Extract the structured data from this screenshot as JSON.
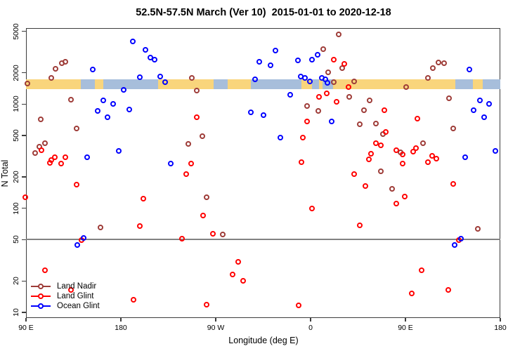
{
  "title": "52.5N-57.5N March (Ver 10)  2015-01-01 to 2020-12-18",
  "x_axis": {
    "label": "Longitude (deg E)",
    "range": [
      90,
      540
    ],
    "ticks": [
      {
        "pos": 90,
        "label": "90 E"
      },
      {
        "pos": 180,
        "label": "180"
      },
      {
        "pos": 270,
        "label": "90 W"
      },
      {
        "pos": 360,
        "label": "0"
      },
      {
        "pos": 450,
        "label": "90 E"
      },
      {
        "pos": 540,
        "label": "180"
      }
    ]
  },
  "y_axis": {
    "label": "N Total",
    "scale": "log",
    "range": [
      10,
      5000
    ],
    "ticks": [
      5000,
      2000,
      1000,
      500,
      200,
      100,
      50,
      20,
      10
    ]
  },
  "reference_line": {
    "value": 50,
    "color": "#828282"
  },
  "map_band": {
    "meaning": "land/ocean strip along 52.5N-57.5N",
    "value_range": [
      1390,
      1730
    ],
    "land_color": "#f9d57c",
    "ocean_color": "#a7bedb",
    "segments": [
      {
        "type": "land",
        "from": 90,
        "to": 142
      },
      {
        "type": "ocean",
        "from": 142,
        "to": 155
      },
      {
        "type": "land",
        "from": 155,
        "to": 163
      },
      {
        "type": "ocean",
        "from": 163,
        "to": 215
      },
      {
        "type": "land",
        "from": 215,
        "to": 268
      },
      {
        "type": "ocean",
        "from": 268,
        "to": 281
      },
      {
        "type": "land",
        "from": 281,
        "to": 303
      },
      {
        "type": "ocean",
        "from": 303,
        "to": 351
      },
      {
        "type": "land",
        "from": 351,
        "to": 361
      },
      {
        "type": "ocean",
        "from": 361,
        "to": 368
      },
      {
        "type": "land",
        "from": 368,
        "to": 371
      },
      {
        "type": "ocean",
        "from": 371,
        "to": 381
      },
      {
        "type": "land",
        "from": 381,
        "to": 497
      },
      {
        "type": "ocean",
        "from": 497,
        "to": 514
      },
      {
        "type": "land",
        "from": 514,
        "to": 523
      },
      {
        "type": "ocean",
        "from": 523,
        "to": 540
      }
    ]
  },
  "legend": {
    "items": [
      {
        "label": "Land Nadir",
        "color": "#9e3c38"
      },
      {
        "label": "Land Glint",
        "color": "#ff0000"
      },
      {
        "label": "Ocean Glint",
        "color": "#0000ff"
      }
    ]
  },
  "chart_data": {
    "type": "scatter",
    "title": "52.5N-57.5N March (Ver 10)  2015-01-01 to 2020-12-18",
    "xlabel": "Longitude (deg E)",
    "ylabel": "N Total",
    "x_note": "longitude along wrapped axis, degrees east from 90 to 540",
    "y_note": "log10 scale, 10 to 5000",
    "series": [
      {
        "name": "Land Nadir",
        "color": "#9e3c38",
        "points": [
          [
            118.7,
            2140
          ],
          [
            124.7,
            2430
          ],
          [
            128,
            2510
          ],
          [
            114.7,
            1770
          ],
          [
            92,
            1560
          ],
          [
            133,
            1090
          ],
          [
            104.7,
            700
          ],
          [
            138.7,
            580
          ],
          [
            108.7,
            417
          ],
          [
            103,
            385
          ],
          [
            99,
            334
          ],
          [
            248,
            1750
          ],
          [
            252.7,
            1340
          ],
          [
            258,
            488
          ],
          [
            244.7,
            410
          ],
          [
            387.3,
            4630
          ],
          [
            372.7,
            3330
          ],
          [
            390.7,
            2180
          ],
          [
            377.3,
            2010
          ],
          [
            382.7,
            1615
          ],
          [
            402,
            1640
          ],
          [
            397.3,
            1160
          ],
          [
            357.3,
            945
          ],
          [
            416.7,
            1070
          ],
          [
            411.3,
            859
          ],
          [
            407.3,
            637
          ],
          [
            422.7,
            647
          ],
          [
            368,
            846
          ],
          [
            429.3,
            510
          ],
          [
            476.7,
            2180
          ],
          [
            482,
            2470
          ],
          [
            487.3,
            2430
          ],
          [
            472,
            1770
          ],
          [
            451.3,
            1445
          ],
          [
            492,
            1120
          ],
          [
            496,
            580
          ],
          [
            467.3,
            417
          ],
          [
            446,
            340
          ],
          [
            262,
            126
          ],
          [
            277.3,
            55
          ],
          [
            427.3,
            222
          ],
          [
            438,
            152
          ],
          [
            519.3,
            63
          ],
          [
            161,
            65
          ]
        ]
      },
      {
        "name": "Land Glint",
        "color": "#ff0000",
        "points": [
          [
            105.3,
            356
          ],
          [
            118,
            304
          ],
          [
            114.7,
            286
          ],
          [
            128,
            304
          ],
          [
            124,
            264
          ],
          [
            113.3,
            268
          ],
          [
            252.7,
            734
          ],
          [
            247.3,
            264
          ],
          [
            382.7,
            2630
          ],
          [
            392.7,
            2390
          ],
          [
            396.7,
            1440
          ],
          [
            376,
            1250
          ],
          [
            368.7,
            1160
          ],
          [
            385.3,
            1040
          ],
          [
            357.3,
            668
          ],
          [
            353.3,
            473
          ],
          [
            352,
            272
          ],
          [
            418,
            329
          ],
          [
            416,
            290
          ],
          [
            422.7,
            417
          ],
          [
            427.3,
            397
          ],
          [
            432,
            536
          ],
          [
            430.7,
            859
          ],
          [
            462,
            711
          ],
          [
            442,
            356
          ],
          [
            448,
            324
          ],
          [
            458,
            345
          ],
          [
            460.7,
            373
          ],
          [
            476,
            314
          ],
          [
            480,
            295
          ],
          [
            472,
            272
          ],
          [
            448,
            264
          ],
          [
            138.7,
            167
          ],
          [
            90,
            126
          ],
          [
            202,
            122
          ],
          [
            198.7,
            67
          ],
          [
            143.3,
            49
          ],
          [
            108.7,
            25
          ],
          [
            133.3,
            16.3
          ],
          [
            192.7,
            13
          ],
          [
            242.7,
            209
          ],
          [
            258.7,
            84
          ],
          [
            268,
            56.5
          ],
          [
            238.7,
            50.6
          ],
          [
            292,
            30
          ],
          [
            286.7,
            23
          ],
          [
            296.7,
            20
          ],
          [
            262,
            11.7
          ],
          [
            402,
            209
          ],
          [
            412.7,
            162
          ],
          [
            362,
            98
          ],
          [
            407.3,
            68
          ],
          [
            349.3,
            11.5
          ],
          [
            450,
            128
          ],
          [
            442,
            109
          ],
          [
            496,
            170
          ],
          [
            501.3,
            49
          ],
          [
            466,
            25
          ],
          [
            456.7,
            15
          ],
          [
            491.3,
            16.3
          ]
        ]
      },
      {
        "name": "Ocean Glint",
        "color": "#0000ff",
        "points": [
          [
            192,
            3960
          ],
          [
            204,
            3280
          ],
          [
            208.7,
            2760
          ],
          [
            212.7,
            2630
          ],
          [
            154,
            2110
          ],
          [
            198.7,
            1800
          ],
          [
            183.3,
            1360
          ],
          [
            164,
            1070
          ],
          [
            173.3,
            990
          ],
          [
            158.7,
            846
          ],
          [
            188.7,
            873
          ],
          [
            168,
            734
          ],
          [
            148.7,
            304
          ],
          [
            178.7,
            351
          ],
          [
            218,
            1830
          ],
          [
            222.7,
            1615
          ],
          [
            308,
            1720
          ],
          [
            312,
            2510
          ],
          [
            304,
            820
          ],
          [
            316,
            770
          ],
          [
            228,
            264
          ],
          [
            327.3,
            3230
          ],
          [
            348.7,
            2590
          ],
          [
            362,
            2630
          ],
          [
            367.3,
            2930
          ],
          [
            322.7,
            2320
          ],
          [
            351.3,
            1830
          ],
          [
            355.3,
            1770
          ],
          [
            360,
            1640
          ],
          [
            371.3,
            1750
          ],
          [
            374.7,
            1720
          ],
          [
            376.7,
            1590
          ],
          [
            341.3,
            1215
          ],
          [
            380.7,
            668
          ],
          [
            332,
            473
          ],
          [
            511.3,
            2110
          ],
          [
            521.3,
            1070
          ],
          [
            530,
            990
          ],
          [
            515.3,
            859
          ],
          [
            525.3,
            734
          ],
          [
            507.3,
            304
          ],
          [
            536,
            351
          ],
          [
            145.3,
            51
          ],
          [
            139.3,
            44
          ],
          [
            503.3,
            50.6
          ],
          [
            497.3,
            44
          ]
        ]
      }
    ]
  }
}
